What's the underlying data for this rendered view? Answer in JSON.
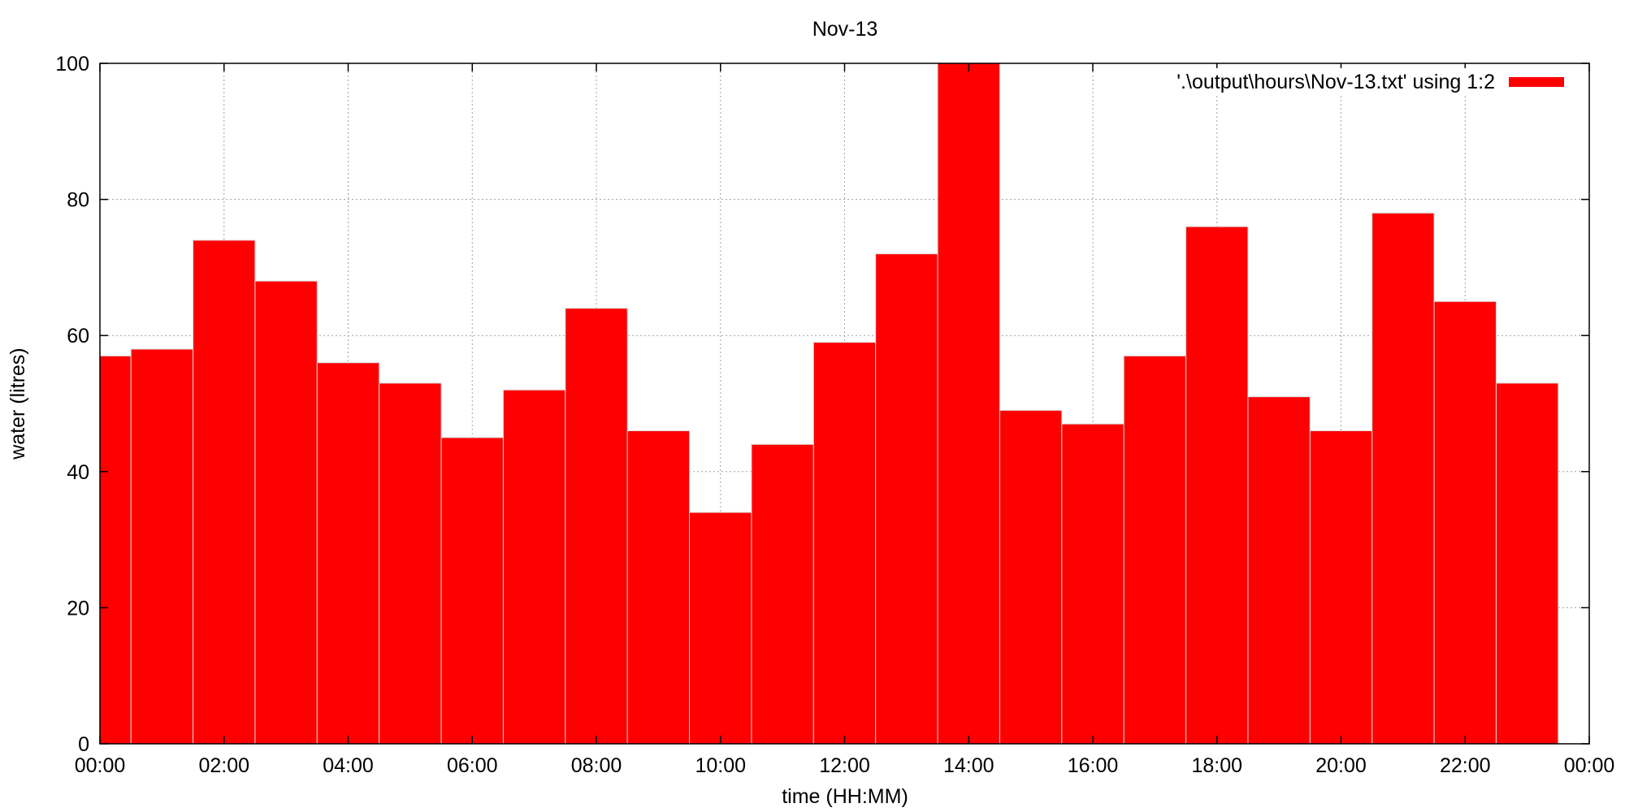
{
  "chart_data": {
    "type": "bar",
    "title": "Nov-13",
    "xlabel": "time (HH:MM)",
    "ylabel": "water (litres)",
    "ylim": [
      0,
      100
    ],
    "yticks": [
      "0",
      "20",
      "40",
      "60",
      "80",
      "100"
    ],
    "xticks": [
      "00:00",
      "02:00",
      "04:00",
      "06:00",
      "08:00",
      "10:00",
      "12:00",
      "14:00",
      "16:00",
      "18:00",
      "20:00",
      "22:00",
      "00:00"
    ],
    "grid": true,
    "legend_position": "top-right",
    "bar_color": "#ff0000",
    "categories": [
      "00:00",
      "01:00",
      "02:00",
      "03:00",
      "04:00",
      "05:00",
      "06:00",
      "07:00",
      "08:00",
      "09:00",
      "10:00",
      "11:00",
      "12:00",
      "13:00",
      "14:00",
      "15:00",
      "16:00",
      "17:00",
      "18:00",
      "19:00",
      "20:00",
      "21:00",
      "22:00",
      "23:00"
    ],
    "series": [
      {
        "name": "'.\\output\\hours\\Nov-13.txt' using 1:2",
        "values": [
          57,
          58,
          74,
          68,
          56,
          53,
          45,
          52,
          64,
          46,
          34,
          44,
          59,
          72,
          100,
          49,
          47,
          57,
          76,
          51,
          46,
          78,
          65,
          53
        ]
      }
    ]
  }
}
